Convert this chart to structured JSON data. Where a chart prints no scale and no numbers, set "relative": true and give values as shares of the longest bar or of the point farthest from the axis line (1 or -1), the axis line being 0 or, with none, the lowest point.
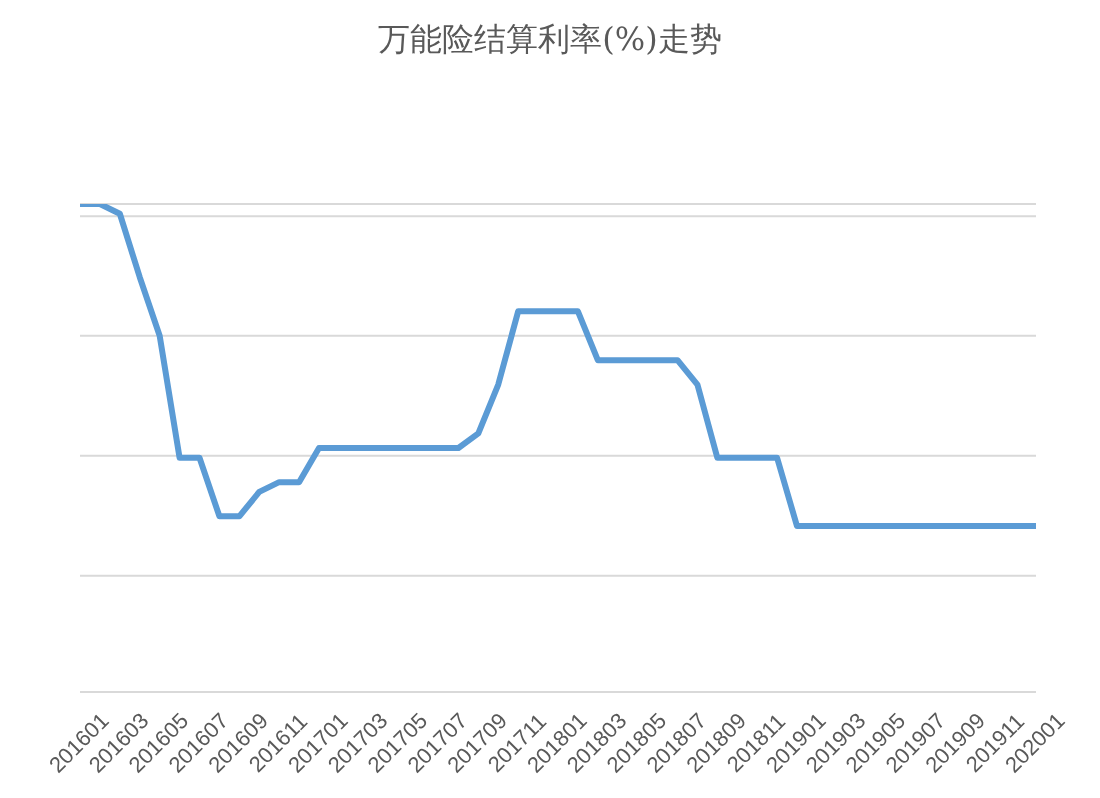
{
  "chart_data": {
    "type": "line",
    "title": "万能险结算利率(%)走势",
    "relative": true,
    "grid": "y",
    "marker": "none",
    "line_style": "solid",
    "categories": [
      "201601",
      null,
      "201603",
      null,
      "201605",
      null,
      "201607",
      null,
      "201609",
      null,
      "201611",
      null,
      "201701",
      null,
      "201703",
      null,
      "201705",
      null,
      "201707",
      null,
      "201709",
      null,
      "201711",
      null,
      "201801",
      null,
      "201803",
      null,
      "201805",
      null,
      "201807",
      null,
      "201809",
      null,
      "201811",
      null,
      "201901",
      null,
      "201903",
      null,
      "201905",
      null,
      "201907",
      null,
      "201909",
      null,
      "201911",
      null,
      "202001"
    ],
    "series": [
      {
        "color": "#5b9bd5",
        "values": [
          1.0,
          1.0,
          0.98,
          0.85,
          0.73,
          0.48,
          0.48,
          0.36,
          0.36,
          0.41,
          0.43,
          0.43,
          0.5,
          0.5,
          0.5,
          0.5,
          0.5,
          0.5,
          0.5,
          0.5,
          0.53,
          0.63,
          0.78,
          0.78,
          0.78,
          0.78,
          0.68,
          0.68,
          0.68,
          0.68,
          0.68,
          0.63,
          0.48,
          0.48,
          0.48,
          0.48,
          0.34,
          0.34,
          0.34,
          0.34,
          0.34,
          0.34,
          0.34,
          0.34,
          0.34,
          0.34,
          0.34,
          0.34,
          0.34
        ]
      }
    ]
  }
}
